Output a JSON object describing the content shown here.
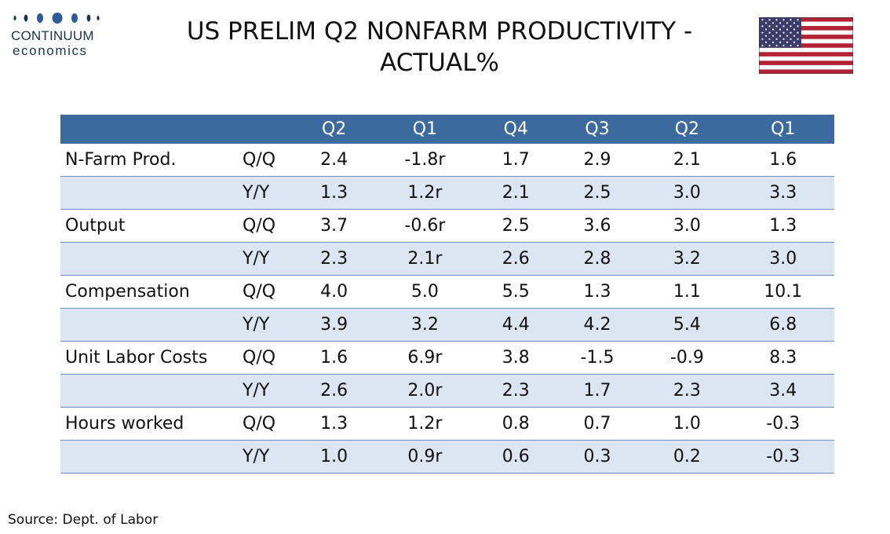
{
  "logo": {
    "word1": "CONTINUUM",
    "word2": "economics",
    "color": "#1b3350"
  },
  "title": {
    "line1": "US PRELIM Q2  NONFARM PRODUCTIVITY -",
    "line2": "ACTUAL%"
  },
  "flag_icon": "us-flag-icon",
  "colors": {
    "header_bg": "#3d6a9e",
    "stripe": "#dce6f2",
    "row_line": "#6c8ebd"
  },
  "chart_data": {
    "type": "table",
    "columns": [
      "",
      "",
      "Q2",
      "Q1",
      "Q4",
      "Q3",
      "Q2",
      "Q1"
    ],
    "rows": [
      [
        "N-Farm Prod.",
        "Q/Q",
        "2.4",
        "-1.8r",
        "1.7",
        "2.9",
        "2.1",
        "1.6"
      ],
      [
        "",
        "Y/Y",
        "1.3",
        "1.2r",
        "2.1",
        "2.5",
        "3.0",
        "3.3"
      ],
      [
        "Output",
        "Q/Q",
        "3.7",
        "-0.6r",
        "2.5",
        "3.6",
        "3.0",
        "1.3"
      ],
      [
        "",
        "Y/Y",
        "2.3",
        "2.1r",
        "2.6",
        "2.8",
        "3.2",
        "3.0"
      ],
      [
        "Compensation",
        "Q/Q",
        "4.0",
        "5.0",
        "5.5",
        "1.3",
        "1.1",
        "10.1"
      ],
      [
        "",
        "Y/Y",
        "3.9",
        "3.2",
        "4.4",
        "4.2",
        "5.4",
        "6.8"
      ],
      [
        "Unit Labor Costs",
        "Q/Q",
        "1.6",
        "6.9r",
        "3.8",
        "-1.5",
        "-0.9",
        "8.3"
      ],
      [
        "",
        "Y/Y",
        "2.6",
        "2.0r",
        "2.3",
        "1.7",
        "2.3",
        "3.4"
      ],
      [
        "Hours worked",
        "Q/Q",
        "1.3",
        "1.2r",
        "0.8",
        "0.7",
        "1.0",
        "-0.3"
      ],
      [
        "",
        "Y/Y",
        "1.0",
        "0.9r",
        "0.6",
        "0.3",
        "0.2",
        "-0.3"
      ]
    ]
  },
  "source": "Source: Dept. of Labor"
}
